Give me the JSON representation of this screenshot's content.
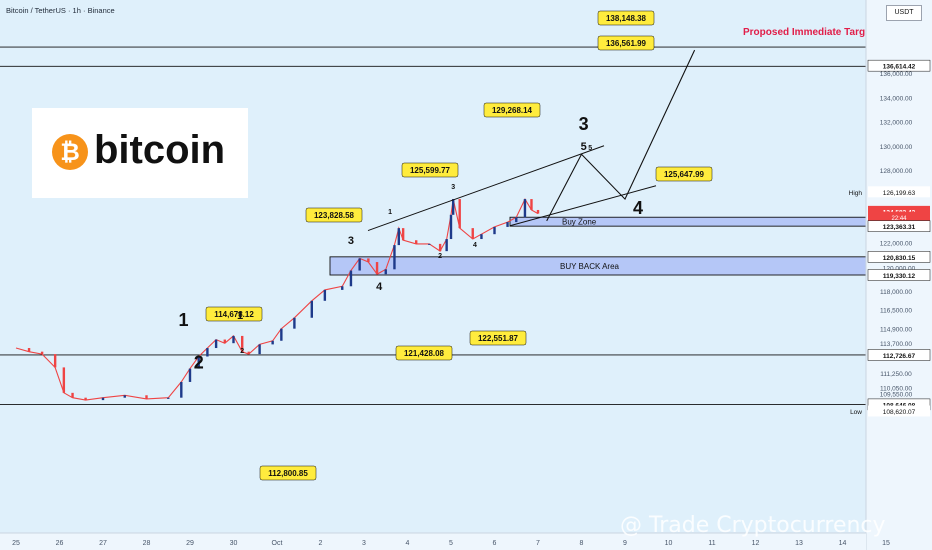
{
  "header": {
    "symbol_line": "Bitcoin / TetherUS · 1h · Binance",
    "currency_button": "USDT"
  },
  "logo": {
    "symbol": "₿",
    "word": "bitcoin"
  },
  "watermark": "@ Trade Cryptocurrency",
  "chart_data": {
    "type": "candlestick",
    "x_tick_labels": [
      "25",
      "26",
      "27",
      "28",
      "29",
      "30",
      "Oct",
      "2",
      "3",
      "4",
      "5",
      "6",
      "7",
      "8",
      "9",
      "10",
      "11",
      "12",
      "13",
      "14",
      "15"
    ],
    "y_tick_labels": [
      "136,000.00",
      "134,000.00",
      "132,000.00",
      "130,000.00",
      "128,000.00",
      "122,000.00",
      "118,000.00",
      "116,500.00",
      "114,900.00",
      "113,700.00",
      "111,250.00",
      "110,050.00",
      "109,550.00",
      "108,620.07"
    ],
    "price_labels": [
      {
        "text": "136,614.42",
        "price": 136614.42,
        "style": "dark"
      },
      {
        "text": "126,199.63",
        "price": 126199.63,
        "style": "light",
        "prefix": "High"
      },
      {
        "text": "124,583.42",
        "price": 124583.42,
        "style": "red"
      },
      {
        "text": "22:44",
        "price": 124100,
        "style": "red-small"
      },
      {
        "text": "123,363.31",
        "price": 123363.31,
        "style": "dark"
      },
      {
        "text": "120,830.15",
        "price": 120830.15,
        "style": "dark"
      },
      {
        "text": "120,000.00",
        "price": 119950,
        "style": "plain"
      },
      {
        "text": "119,330.12",
        "price": 119330.12,
        "style": "dark"
      },
      {
        "text": "112,726.67",
        "price": 112726.67,
        "style": "dark"
      },
      {
        "text": "108,646.08",
        "price": 108646.08,
        "style": "dark"
      },
      {
        "text": "108,620.07",
        "price": 108100,
        "style": "light",
        "prefix": "Low"
      }
    ],
    "horizontal_lines": [
      138148.38,
      136561.99,
      112726.67,
      108646.08
    ],
    "zones": [
      {
        "label": "Buy Zone",
        "top": 124100,
        "bottom": 123363.31
      },
      {
        "label": "BUY BACK Area",
        "top": 120830.15,
        "bottom": 119330.12
      }
    ],
    "callouts": [
      {
        "text": "138,148.38",
        "day": 2.0,
        "price": 138148.38
      },
      {
        "text": "136,561.99",
        "day": 2.0,
        "price": 136561.99
      },
      {
        "text": "129,268.14",
        "day": 0.8,
        "price": 129268.14
      },
      {
        "text": "125,599.77",
        "day": 0.6,
        "price": 125599.77
      },
      {
        "text": "125,647.99",
        "day": 0.9,
        "price": 125647.99
      },
      {
        "text": "123,828.58",
        "day": 0.5,
        "price": 123828.58
      },
      {
        "text": "114,678.12",
        "day": 0.3,
        "price": 114678.12
      },
      {
        "text": "121,428.08",
        "day": 0.4,
        "price": 121428.08
      },
      {
        "text": "122,551.87",
        "day": 0.5,
        "price": 122551.87
      },
      {
        "text": "112,800.85",
        "day": 0.2,
        "price": 112800.85
      }
    ],
    "target_label": "Proposed Immediate Target",
    "wave_labels": [
      {
        "text": "1",
        "day": 3.85,
        "price": 115100,
        "size": "big"
      },
      {
        "text": "2",
        "day": 4.2,
        "price": 111600,
        "size": "big"
      },
      {
        "text": "3",
        "day": 13.05,
        "price": 131300,
        "size": "big"
      },
      {
        "text": "4",
        "day": 14.3,
        "price": 124350,
        "size": "big"
      },
      {
        "text": "1",
        "day": 5.15,
        "price": 115700,
        "size": "small"
      },
      {
        "text": "2",
        "day": 5.2,
        "price": 112900,
        "size": "tiny"
      },
      {
        "text": "3",
        "day": 7.7,
        "price": 121900,
        "size": "small"
      },
      {
        "text": "4",
        "day": 8.35,
        "price": 118100,
        "size": "small"
      },
      {
        "text": "1",
        "day": 8.6,
        "price": 124350,
        "size": "tiny"
      },
      {
        "text": "2",
        "day": 9.75,
        "price": 120750,
        "size": "tiny"
      },
      {
        "text": "3",
        "day": 10.05,
        "price": 126450,
        "size": "tiny"
      },
      {
        "text": "4",
        "day": 10.55,
        "price": 121650,
        "size": "tiny"
      },
      {
        "text": "5",
        "day": 13.05,
        "price": 129650,
        "size": "small"
      },
      {
        "text": "5",
        "day": 13.2,
        "price": 129650,
        "size": "tiny"
      }
    ],
    "candle_path": [
      [
        0.0,
        113300
      ],
      [
        0.3,
        113000
      ],
      [
        0.6,
        112800
      ],
      [
        0.9,
        111700
      ],
      [
        1.1,
        109600
      ],
      [
        1.3,
        109200
      ],
      [
        1.6,
        109000
      ],
      [
        2.0,
        109200
      ],
      [
        2.5,
        109400
      ],
      [
        3.0,
        109100
      ],
      [
        3.5,
        109200
      ],
      [
        3.8,
        110500
      ],
      [
        4.0,
        111600
      ],
      [
        4.2,
        112600
      ],
      [
        4.4,
        113300
      ],
      [
        4.6,
        114000
      ],
      [
        4.8,
        113700
      ],
      [
        5.0,
        114300
      ],
      [
        5.2,
        113000
      ],
      [
        5.35,
        112800
      ],
      [
        5.6,
        113600
      ],
      [
        5.9,
        113900
      ],
      [
        6.1,
        114900
      ],
      [
        6.4,
        115800
      ],
      [
        6.8,
        117200
      ],
      [
        7.1,
        118100
      ],
      [
        7.5,
        118400
      ],
      [
        7.7,
        119700
      ],
      [
        7.9,
        120700
      ],
      [
        8.1,
        120400
      ],
      [
        8.3,
        119400
      ],
      [
        8.5,
        119800
      ],
      [
        8.7,
        121800
      ],
      [
        8.8,
        123200
      ],
      [
        8.9,
        122200
      ],
      [
        9.2,
        121900
      ],
      [
        9.5,
        121900
      ],
      [
        9.75,
        121300
      ],
      [
        9.9,
        122300
      ],
      [
        10.0,
        124300
      ],
      [
        10.05,
        125600
      ],
      [
        10.2,
        123200
      ],
      [
        10.5,
        122300
      ],
      [
        10.7,
        122700
      ],
      [
        11.0,
        123300
      ],
      [
        11.3,
        123700
      ],
      [
        11.5,
        124100
      ],
      [
        11.7,
        125600
      ],
      [
        11.85,
        124700
      ],
      [
        12.0,
        124400
      ]
    ],
    "trend_projection": [
      [
        12.2,
        123800
      ],
      [
        13.0,
        129300
      ],
      [
        14.0,
        125600
      ],
      [
        15.6,
        137900
      ]
    ]
  }
}
